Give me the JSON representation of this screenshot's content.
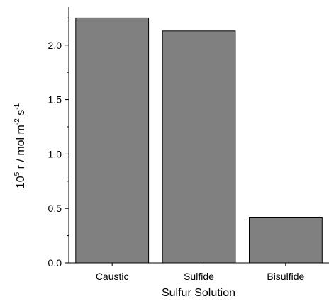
{
  "chart_data": {
    "type": "bar",
    "categories": [
      "Caustic",
      "Sulfide",
      "Bisulfide"
    ],
    "values": [
      2.25,
      2.13,
      0.42
    ],
    "title": "",
    "xlabel": "Sulfur Solution",
    "ylabel": {
      "base": "10",
      "exp": "5",
      "mid": " r / mol m",
      "exp2": "-2",
      "tail": " s",
      "exp3": "-1"
    },
    "ylim": [
      0,
      2.35
    ],
    "yticks": [
      "0.0",
      "0.5",
      "1.0",
      "1.5",
      "2.0"
    ],
    "ytick_values": [
      0,
      0.5,
      1.0,
      1.5,
      2.0
    ],
    "grid": false,
    "colors": {
      "bar": "#808080",
      "edge": "#000000"
    }
  }
}
